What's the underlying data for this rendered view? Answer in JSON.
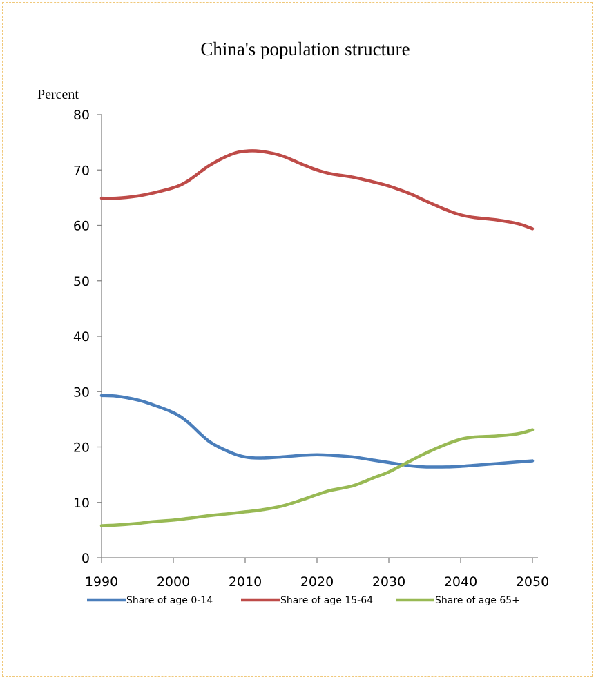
{
  "chart_data": {
    "type": "line",
    "title": "China's population structure",
    "ylabel": "Percent",
    "xlabel": "",
    "ylim": [
      0,
      80
    ],
    "xlim": [
      1990,
      2050
    ],
    "yticks": [
      "0",
      "10",
      "20",
      "30",
      "40",
      "50",
      "60",
      "70",
      "80"
    ],
    "xticks": [
      "1990",
      "2000",
      "2010",
      "2020",
      "2030",
      "2040",
      "2050"
    ],
    "grid": false,
    "legend_position": "bottom",
    "x": [
      1990,
      1992,
      1995,
      1997,
      2000,
      2002,
      2005,
      2008,
      2010,
      2012,
      2015,
      2018,
      2020,
      2022,
      2025,
      2028,
      2030,
      2033,
      2035,
      2038,
      2040,
      2042,
      2045,
      2048,
      2050
    ],
    "series": [
      {
        "name": "Share of age 0-14",
        "color": "#4a7ebb",
        "values": [
          29.3,
          29.2,
          28.5,
          27.7,
          26.2,
          24.5,
          21.0,
          19.0,
          18.2,
          18.0,
          18.2,
          18.5,
          18.6,
          18.5,
          18.2,
          17.6,
          17.2,
          16.6,
          16.4,
          16.4,
          16.5,
          16.7,
          17.0,
          17.3,
          17.5
        ]
      },
      {
        "name": "Share of age 15-64",
        "color": "#be4b48",
        "values": [
          64.9,
          64.9,
          65.3,
          65.8,
          66.8,
          68.0,
          70.8,
          72.8,
          73.4,
          73.4,
          72.6,
          71.0,
          70.0,
          69.3,
          68.7,
          67.8,
          67.1,
          65.7,
          64.5,
          62.8,
          61.9,
          61.4,
          61.0,
          60.3,
          59.4
        ]
      },
      {
        "name": "Share of age 65+",
        "color": "#98b954",
        "values": [
          5.8,
          5.9,
          6.2,
          6.5,
          6.8,
          7.1,
          7.6,
          8.0,
          8.3,
          8.6,
          9.3,
          10.5,
          11.4,
          12.2,
          13.0,
          14.5,
          15.5,
          17.5,
          18.8,
          20.5,
          21.4,
          21.8,
          22.0,
          22.4,
          23.1
        ]
      }
    ]
  }
}
